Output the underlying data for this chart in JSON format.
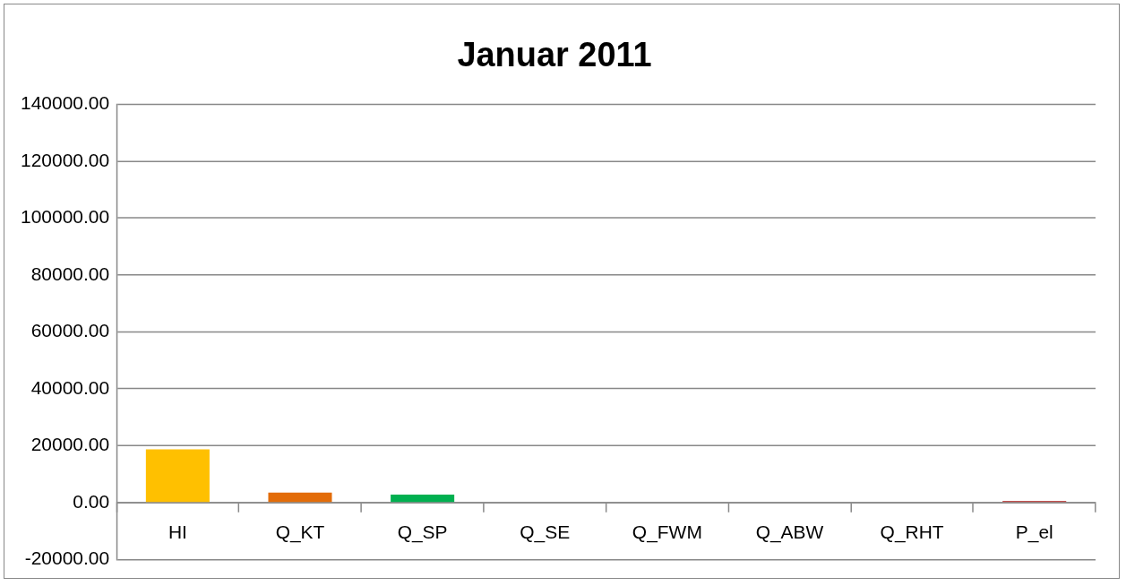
{
  "chart_data": {
    "type": "bar",
    "title": "Januar 2011",
    "categories": [
      "HI",
      "Q_KT",
      "Q_SP",
      "Q_SE",
      "Q_FWM",
      "Q_ABW",
      "Q_RHT",
      "P_el"
    ],
    "values": [
      18700,
      3500,
      2800,
      0,
      0,
      0,
      0,
      600
    ],
    "colors": [
      "#ffc000",
      "#e36c09",
      "#00b050",
      "#4f81bd",
      "#8064a2",
      "#4bacc6",
      "#f79646",
      "#c0504d"
    ],
    "ylim": [
      -20000,
      140000
    ],
    "yticks": [
      {
        "value": -20000,
        "label": "-20000.00"
      },
      {
        "value": 0,
        "label": "0.00"
      },
      {
        "value": 20000,
        "label": "20000.00"
      },
      {
        "value": 40000,
        "label": "40000.00"
      },
      {
        "value": 60000,
        "label": "60000.00"
      },
      {
        "value": 80000,
        "label": "80000.00"
      },
      {
        "value": 100000,
        "label": "100000.00"
      },
      {
        "value": 120000,
        "label": "120000.00"
      },
      {
        "value": 140000,
        "label": "140000.00"
      }
    ],
    "grid": "y",
    "legend": false
  }
}
